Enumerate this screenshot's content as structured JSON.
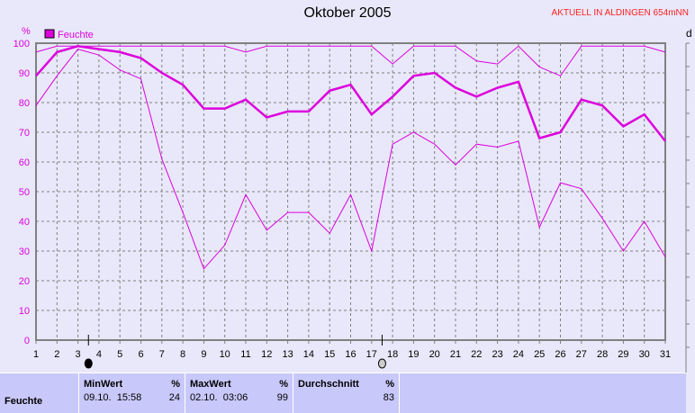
{
  "header": {
    "title": "Oktober 2005",
    "status": "AKTUELL IN ALDINGEN 654mNN",
    "side_label": "d"
  },
  "chart_data": {
    "type": "line",
    "title": "Oktober 2005",
    "ylabel": "%",
    "ylim": [
      0,
      100
    ],
    "yticks": [
      0,
      10,
      20,
      30,
      40,
      50,
      60,
      70,
      80,
      90,
      100
    ],
    "x": [
      1,
      2,
      3,
      4,
      5,
      6,
      7,
      8,
      9,
      10,
      11,
      12,
      13,
      14,
      15,
      16,
      17,
      18,
      19,
      20,
      21,
      22,
      23,
      24,
      25,
      26,
      27,
      28,
      29,
      30,
      31
    ],
    "legend": {
      "label": "Feuchte",
      "placement": "top-left"
    },
    "grid": true,
    "color": "#dd00dd",
    "series": [
      {
        "role": "max",
        "values": [
          97,
          99,
          99,
          99,
          99,
          99,
          99,
          99,
          99,
          99,
          97,
          99,
          99,
          99,
          99,
          99,
          99,
          93,
          99,
          99,
          99,
          94,
          93,
          99,
          92,
          89,
          99,
          99,
          99,
          99,
          97
        ]
      },
      {
        "role": "average",
        "values": [
          89,
          97,
          99,
          98,
          97,
          95,
          90,
          86,
          78,
          78,
          81,
          75,
          77,
          77,
          84,
          86,
          76,
          82,
          89,
          90,
          85,
          82,
          85,
          87,
          68,
          70,
          81,
          79,
          72,
          76,
          67
        ]
      },
      {
        "role": "min",
        "values": [
          79,
          89,
          98,
          96,
          91,
          88,
          61,
          43,
          24,
          32,
          49,
          37,
          43,
          43,
          36,
          49,
          30,
          66,
          70,
          66,
          59,
          66,
          65,
          67,
          38,
          53,
          51,
          41,
          30,
          40,
          28
        ]
      }
    ],
    "moon_phases": [
      {
        "day": 3.5,
        "phase": "new-moon"
      },
      {
        "day": 17.5,
        "phase": "full-moon"
      }
    ]
  },
  "table": {
    "row_label": "Feuchte",
    "min": {
      "header": "MinWert",
      "unit": "%",
      "date": "09.10.  15:58",
      "value": "24"
    },
    "max": {
      "header": "MaxWert",
      "unit": "%",
      "date": "02.10.  03:06",
      "value": "99"
    },
    "avg": {
      "header": "Durchschnitt",
      "unit": "%",
      "value": "83"
    }
  }
}
